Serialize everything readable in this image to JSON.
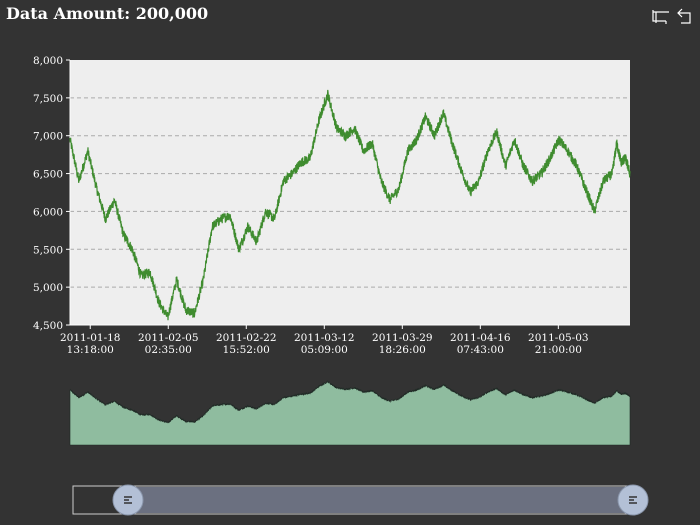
{
  "title": "Data Amount: 200,000",
  "toolbox": {
    "icons": [
      "zoom-icon",
      "reset-icon"
    ]
  },
  "colors": {
    "background": "#333333",
    "plot_area": "#eeeeee",
    "line": "#3f8c2f",
    "slider_fill": "#8fbc9f",
    "slider_window": "#6b7080",
    "handle": "#b3c0d6"
  },
  "chart_data": {
    "type": "line",
    "title": "Data Amount: 200,000",
    "x_ticks": [
      [
        "2011-01-18",
        "13:18:00"
      ],
      [
        "2011-02-05",
        "02:35:00"
      ],
      [
        "2011-02-22",
        "15:52:00"
      ],
      [
        "2011-03-12",
        "05:09:00"
      ],
      [
        "2011-03-29",
        "18:26:00"
      ],
      [
        "2011-04-16",
        "07:43:00"
      ],
      [
        "2011-05-03",
        "21:00:00"
      ]
    ],
    "y_ticks": [
      "4,500",
      "5,000",
      "5,500",
      "6,000",
      "6,500",
      "7,000",
      "7,500",
      "8,000"
    ],
    "ylim": [
      4500,
      8000
    ],
    "xlim": [
      "2011-01-14",
      "2011-05-20"
    ],
    "grid": true,
    "series": [
      {
        "values": [
          [
            "2011-01-14",
            6950
          ],
          [
            "2011-01-16",
            6400
          ],
          [
            "2011-01-18",
            6800
          ],
          [
            "2011-01-20",
            6300
          ],
          [
            "2011-01-22",
            5900
          ],
          [
            "2011-01-24",
            6150
          ],
          [
            "2011-01-26",
            5700
          ],
          [
            "2011-01-28",
            5500
          ],
          [
            "2011-01-30",
            5150
          ],
          [
            "2011-02-01",
            5200
          ],
          [
            "2011-02-03",
            4800
          ],
          [
            "2011-02-05",
            4600
          ],
          [
            "2011-02-07",
            5100
          ],
          [
            "2011-02-09",
            4700
          ],
          [
            "2011-02-11",
            4650
          ],
          [
            "2011-02-13",
            5100
          ],
          [
            "2011-02-15",
            5800
          ],
          [
            "2011-02-17",
            5900
          ],
          [
            "2011-02-19",
            5950
          ],
          [
            "2011-02-21",
            5500
          ],
          [
            "2011-02-23",
            5800
          ],
          [
            "2011-02-25",
            5600
          ],
          [
            "2011-02-27",
            6000
          ],
          [
            "2011-03-01",
            5900
          ],
          [
            "2011-03-03",
            6400
          ],
          [
            "2011-03-05",
            6500
          ],
          [
            "2011-03-07",
            6650
          ],
          [
            "2011-03-09",
            6700
          ],
          [
            "2011-03-11",
            7200
          ],
          [
            "2011-03-13",
            7550
          ],
          [
            "2011-03-15",
            7100
          ],
          [
            "2011-03-17",
            7000
          ],
          [
            "2011-03-19",
            7100
          ],
          [
            "2011-03-21",
            6800
          ],
          [
            "2011-03-23",
            6900
          ],
          [
            "2011-03-25",
            6400
          ],
          [
            "2011-03-27",
            6150
          ],
          [
            "2011-03-29",
            6300
          ],
          [
            "2011-03-31",
            6800
          ],
          [
            "2011-04-02",
            6950
          ],
          [
            "2011-04-04",
            7250
          ],
          [
            "2011-04-06",
            7000
          ],
          [
            "2011-04-08",
            7300
          ],
          [
            "2011-04-10",
            6900
          ],
          [
            "2011-04-12",
            6550
          ],
          [
            "2011-04-14",
            6250
          ],
          [
            "2011-04-16",
            6400
          ],
          [
            "2011-04-18",
            6800
          ],
          [
            "2011-04-20",
            7050
          ],
          [
            "2011-04-22",
            6600
          ],
          [
            "2011-04-24",
            6950
          ],
          [
            "2011-04-26",
            6600
          ],
          [
            "2011-04-28",
            6400
          ],
          [
            "2011-04-30",
            6500
          ],
          [
            "2011-05-02",
            6700
          ],
          [
            "2011-05-04",
            6950
          ],
          [
            "2011-05-06",
            6800
          ],
          [
            "2011-05-08",
            6600
          ],
          [
            "2011-05-10",
            6300
          ],
          [
            "2011-05-12",
            6000
          ],
          [
            "2011-05-14",
            6400
          ],
          [
            "2011-05-16",
            6500
          ],
          [
            "2011-05-17",
            6900
          ],
          [
            "2011-05-18",
            6650
          ],
          [
            "2011-05-19",
            6700
          ],
          [
            "2011-05-20",
            6500
          ]
        ]
      }
    ]
  },
  "slider": {
    "start_percent": 0,
    "end_percent": 100
  }
}
